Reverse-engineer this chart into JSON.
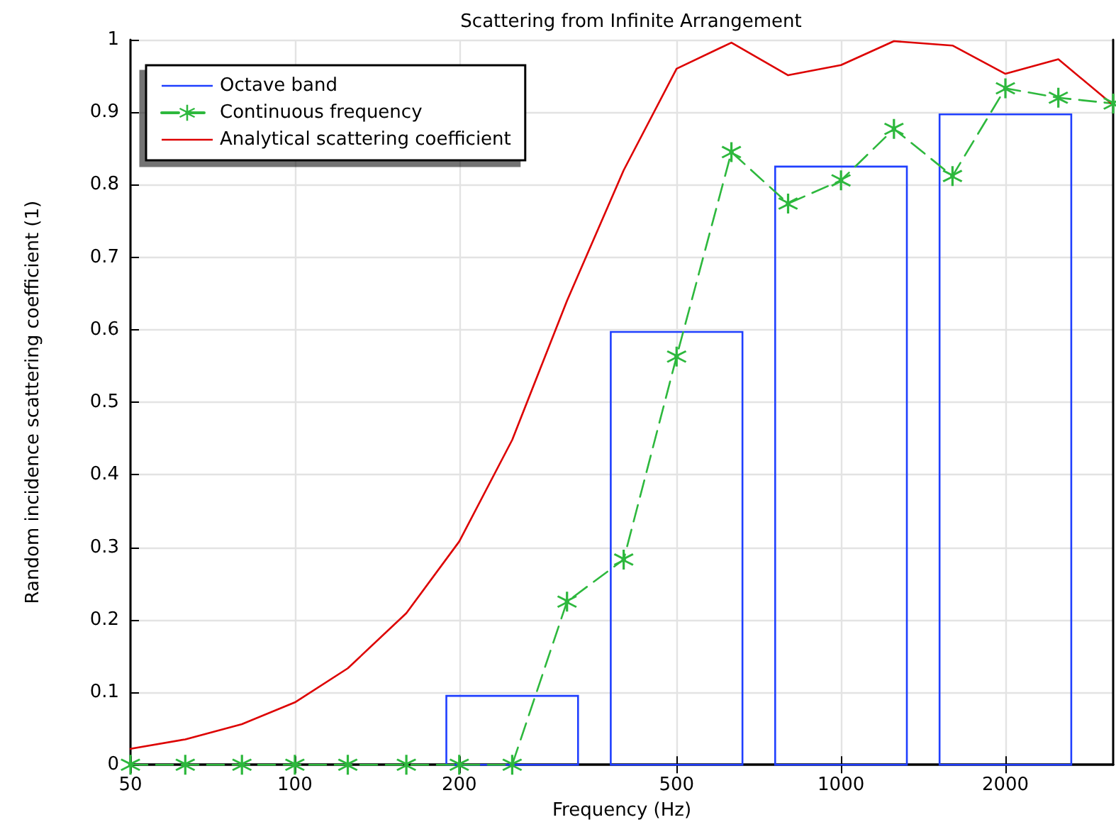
{
  "chart_data": {
    "type": "line",
    "title": "Scattering from Infinite Arrangement",
    "xlabel": "Frequency (Hz)",
    "ylabel": "Random incidence scattering coefficient (1)",
    "x": [
      50,
      63,
      80,
      100,
      125,
      160,
      200,
      250,
      315,
      400,
      500,
      630,
      800,
      1000,
      1250,
      1600,
      2000,
      2500,
      3150
    ],
    "series": [
      {
        "name": "Octave band",
        "type": "bar",
        "color": "#1f3fff",
        "x": [
          250,
          500,
          1000,
          2000
        ],
        "values": [
          0.095,
          0.597,
          0.825,
          0.897
        ]
      },
      {
        "name": "Continuous frequency",
        "color": "#2db83d",
        "marker": "star",
        "line_style": "dashed",
        "values": [
          0,
          0,
          0,
          0,
          0,
          0,
          0,
          0,
          0.225,
          0.283,
          0.563,
          0.845,
          0.774,
          0.806,
          0.877,
          0.812,
          0.933,
          0.92,
          0.912
        ]
      },
      {
        "name": "Analytical scattering coefficient",
        "color": "#dd0000",
        "values": [
          0.022,
          0.035,
          0.056,
          0.086,
          0.133,
          0.209,
          0.308,
          0.448,
          0.64,
          0.82,
          0.96,
          0.996,
          0.951,
          0.965,
          0.998,
          0.992,
          0.953,
          0.973,
          0.91
        ]
      }
    ],
    "log": "x",
    "xlim": [
      50,
      3150
    ],
    "xticks": [
      50,
      100,
      200,
      500,
      1000,
      2000
    ],
    "ylim": [
      0,
      1
    ],
    "yticks": [
      0,
      0.1,
      0.2,
      0.3,
      0.4,
      0.5,
      0.6,
      0.7,
      0.8,
      0.9,
      1
    ],
    "grid": true,
    "legend": "top left"
  }
}
